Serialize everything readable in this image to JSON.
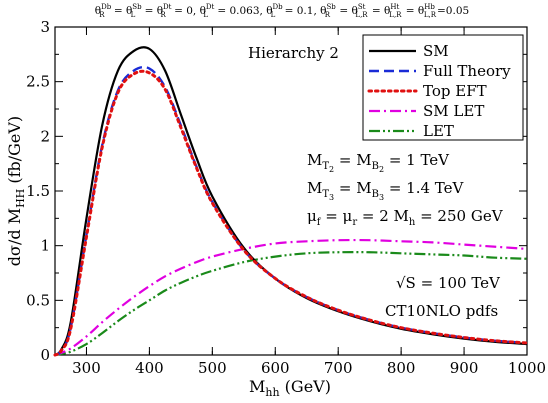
{
  "chart_data": {
    "type": "line",
    "top_note": "θR^Db = θL^Sb = θR^Dt = 0, θL^Dt = 0.063, θL^Db = 0.1, θR^Sb = θL,R^St = θL,R^Ht = θL,R^Hb = 0.05",
    "title": "",
    "xlabel": "M_hh (GeV)",
    "ylabel": "dσ/d M_HH (fb/GeV)",
    "xlim": [
      250,
      1000
    ],
    "ylim": [
      0,
      3
    ],
    "xticks": [
      300,
      400,
      500,
      600,
      700,
      800,
      900,
      1000
    ],
    "yticks": [
      0,
      0.5,
      1,
      1.5,
      2,
      2.5,
      3
    ],
    "ytick_labels": [
      "0",
      "0.5",
      "1",
      "1.5",
      "2",
      "2.5",
      "3"
    ],
    "grid": false,
    "legend_position": "top-right",
    "annotations": {
      "hierarchy": "Hierarchy 2",
      "mass1": "M_T2 = M_B2 = 1 TeV",
      "mass2": "M_T3 = M_B3 = 1.4 TeV",
      "scale": "μf = μr = 2 Mh = 250 GeV",
      "energy": "√S = 100 TeV",
      "pdf": "CT10NLO pdfs"
    },
    "x": [
      250,
      260,
      275,
      300,
      325,
      350,
      375,
      400,
      425,
      450,
      475,
      500,
      550,
      600,
      650,
      700,
      750,
      800,
      850,
      900,
      950,
      1000
    ],
    "series": [
      {
        "name": "SM",
        "color": "#000000",
        "dash": "solid",
        "values": [
          0,
          0.05,
          0.3,
          1.25,
          2.1,
          2.6,
          2.78,
          2.8,
          2.6,
          2.2,
          1.8,
          1.45,
          0.98,
          0.7,
          0.52,
          0.4,
          0.31,
          0.24,
          0.19,
          0.15,
          0.12,
          0.1
        ]
      },
      {
        "name": "Full Theory",
        "color": "#1a2bd6",
        "dash": "dashed",
        "values": [
          0,
          0.04,
          0.25,
          1.1,
          1.92,
          2.42,
          2.6,
          2.62,
          2.45,
          2.1,
          1.72,
          1.4,
          0.96,
          0.7,
          0.53,
          0.41,
          0.32,
          0.25,
          0.2,
          0.16,
          0.13,
          0.11
        ]
      },
      {
        "name": "Top EFT",
        "color": "#e01010",
        "dash": "dotted",
        "values": [
          0,
          0.04,
          0.24,
          1.08,
          1.9,
          2.4,
          2.57,
          2.58,
          2.43,
          2.08,
          1.71,
          1.39,
          0.96,
          0.7,
          0.53,
          0.41,
          0.32,
          0.25,
          0.2,
          0.16,
          0.13,
          0.11
        ]
      },
      {
        "name": "SM LET",
        "color": "#e000e0",
        "dash": "dashdot",
        "values": [
          0,
          0.02,
          0.06,
          0.17,
          0.3,
          0.42,
          0.53,
          0.63,
          0.72,
          0.79,
          0.85,
          0.9,
          0.97,
          1.02,
          1.04,
          1.05,
          1.05,
          1.04,
          1.03,
          1.01,
          0.99,
          0.97
        ]
      },
      {
        "name": "LET",
        "color": "#1a8a1a",
        "dash": "dashdotdot",
        "values": [
          0,
          0.01,
          0.03,
          0.1,
          0.2,
          0.31,
          0.41,
          0.5,
          0.59,
          0.66,
          0.72,
          0.77,
          0.85,
          0.9,
          0.93,
          0.94,
          0.94,
          0.93,
          0.92,
          0.91,
          0.89,
          0.88
        ]
      }
    ]
  }
}
